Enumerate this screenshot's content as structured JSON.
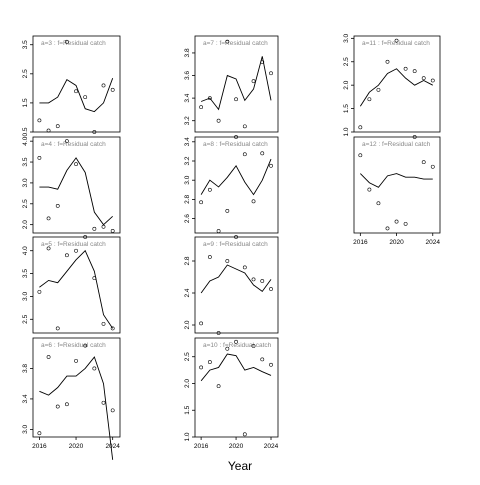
{
  "figure": {
    "xlabel": "Year"
  },
  "chart_data": [
    {
      "type": "line",
      "title": "a=3  :  f=Residual catch",
      "x": [
        2016,
        2017,
        2018,
        2019,
        2020,
        2021,
        2022,
        2023,
        2024
      ],
      "ylim": [
        0.5,
        3.8
      ],
      "yticks": [
        "0.5",
        "1.5",
        "2.5",
        "3.5"
      ],
      "ytick_values": [
        0.5,
        1.5,
        2.5,
        3.5
      ],
      "series": [
        {
          "values": [
            1.5,
            1.5,
            1.7,
            2.3,
            2.1,
            1.3,
            1.2,
            1.5,
            2.35
          ]
        }
      ],
      "observed": [
        {
          "x": 2016,
          "y": 0.9
        },
        {
          "x": 2017,
          "y": 0.55
        },
        {
          "x": 2018,
          "y": 0.7
        },
        {
          "x": 2019,
          "y": 3.6
        },
        {
          "x": 2020,
          "y": 1.9
        },
        {
          "x": 2021,
          "y": 1.7
        },
        {
          "x": 2022,
          "y": 0.5
        },
        {
          "x": 2023,
          "y": 2.1
        },
        {
          "x": 2024,
          "y": 1.95
        }
      ]
    },
    {
      "type": "line",
      "title": "a=4  :  f=Residual catch",
      "x": [
        2016,
        2017,
        2018,
        2019,
        2020,
        2021,
        2022,
        2023,
        2024
      ],
      "ylim": [
        1.8,
        4.1
      ],
      "yticks": [
        "2.0",
        "2.5",
        "3.0",
        "3.5",
        "4.0"
      ],
      "ytick_values": [
        2.0,
        2.5,
        3.0,
        3.5,
        4.0
      ],
      "series": [
        {
          "values": [
            2.9,
            2.9,
            2.85,
            3.3,
            3.6,
            3.25,
            2.3,
            2.0,
            2.2
          ]
        }
      ],
      "observed": [
        {
          "x": 2016,
          "y": 3.6
        },
        {
          "x": 2017,
          "y": 2.15
        },
        {
          "x": 2018,
          "y": 2.45
        },
        {
          "x": 2019,
          "y": 4.0
        },
        {
          "x": 2020,
          "y": 3.45
        },
        {
          "x": 2021,
          "y": 4.15
        },
        {
          "x": 2022,
          "y": 1.9
        },
        {
          "x": 2023,
          "y": 1.95
        },
        {
          "x": 2024,
          "y": 1.85
        }
      ]
    },
    {
      "type": "line",
      "title": "a=5  :  f=Residual catch",
      "x": [
        2016,
        2017,
        2018,
        2019,
        2020,
        2021,
        2022,
        2023,
        2024
      ],
      "ylim": [
        2.2,
        4.3
      ],
      "yticks": [
        "2.5",
        "3.0",
        "3.5",
        "4.0"
      ],
      "ytick_values": [
        2.5,
        3.0,
        3.5,
        4.0
      ],
      "series": [
        {
          "values": [
            3.2,
            3.35,
            3.3,
            3.55,
            3.8,
            4.0,
            3.55,
            2.6,
            2.3
          ]
        }
      ],
      "observed": [
        {
          "x": 2016,
          "y": 3.1
        },
        {
          "x": 2017,
          "y": 4.05
        },
        {
          "x": 2018,
          "y": 2.3
        },
        {
          "x": 2019,
          "y": 3.9
        },
        {
          "x": 2020,
          "y": 4.0
        },
        {
          "x": 2021,
          "y": 4.3
        },
        {
          "x": 2022,
          "y": 3.4
        },
        {
          "x": 2023,
          "y": 2.4
        },
        {
          "x": 2024,
          "y": 2.3
        }
      ]
    },
    {
      "type": "line",
      "title": "a=6  :  f=Residual catch",
      "x": [
        2016,
        2017,
        2018,
        2019,
        2020,
        2021,
        2022,
        2023,
        2024
      ],
      "ylim": [
        2.9,
        4.2
      ],
      "yticks": [
        "3.0",
        "3.4",
        "3.8"
      ],
      "ytick_values": [
        3.0,
        3.4,
        3.8
      ],
      "series": [
        {
          "values": [
            3.5,
            3.45,
            3.55,
            3.7,
            3.7,
            3.8,
            3.95,
            3.6,
            2.6
          ]
        }
      ],
      "observed": [
        {
          "x": 2016,
          "y": 2.95
        },
        {
          "x": 2017,
          "y": 3.95
        },
        {
          "x": 2018,
          "y": 3.3
        },
        {
          "x": 2019,
          "y": 3.33
        },
        {
          "x": 2020,
          "y": 3.9
        },
        {
          "x": 2021,
          "y": 4.1
        },
        {
          "x": 2022,
          "y": 3.8
        },
        {
          "x": 2023,
          "y": 3.35
        },
        {
          "x": 2024,
          "y": 3.25
        }
      ]
    },
    {
      "type": "line",
      "title": "a=7  :  f=Residual catch",
      "x": [
        2016,
        2017,
        2018,
        2019,
        2020,
        2021,
        2022,
        2023,
        2024
      ],
      "ylim": [
        3.1,
        3.95
      ],
      "yticks": [
        "3.2",
        "3.4",
        "3.6",
        "3.8"
      ],
      "ytick_values": [
        3.2,
        3.4,
        3.6,
        3.8
      ],
      "series": [
        {
          "values": [
            3.37,
            3.4,
            3.3,
            3.6,
            3.57,
            3.38,
            3.48,
            3.77,
            3.38
          ]
        }
      ],
      "observed": [
        {
          "x": 2016,
          "y": 3.32
        },
        {
          "x": 2017,
          "y": 3.4
        },
        {
          "x": 2018,
          "y": 3.2
        },
        {
          "x": 2019,
          "y": 3.9
        },
        {
          "x": 2020,
          "y": 3.39
        },
        {
          "x": 2021,
          "y": 3.15
        },
        {
          "x": 2022,
          "y": 3.55
        },
        {
          "x": 2023,
          "y": 3.72
        },
        {
          "x": 2024,
          "y": 3.62
        }
      ]
    },
    {
      "type": "line",
      "title": "a=8  :  f=Residual catch",
      "x": [
        2016,
        2017,
        2018,
        2019,
        2020,
        2021,
        2022,
        2023,
        2024
      ],
      "ylim": [
        2.45,
        3.45
      ],
      "yticks": [
        "2.6",
        "2.8",
        "3.0",
        "3.2",
        "3.4"
      ],
      "ytick_values": [
        2.6,
        2.8,
        3.0,
        3.2,
        3.4
      ],
      "series": [
        {
          "values": [
            2.85,
            3.0,
            2.93,
            3.03,
            3.15,
            2.98,
            2.85,
            3.0,
            3.22
          ]
        }
      ],
      "observed": [
        {
          "x": 2016,
          "y": 2.77
        },
        {
          "x": 2017,
          "y": 2.9
        },
        {
          "x": 2018,
          "y": 2.47
        },
        {
          "x": 2019,
          "y": 2.68
        },
        {
          "x": 2020,
          "y": 3.45
        },
        {
          "x": 2021,
          "y": 3.27
        },
        {
          "x": 2022,
          "y": 2.78
        },
        {
          "x": 2023,
          "y": 3.28
        },
        {
          "x": 2024,
          "y": 3.15
        }
      ]
    },
    {
      "type": "line",
      "title": "a=9  :  f=Residual catch",
      "x": [
        2016,
        2017,
        2018,
        2019,
        2020,
        2021,
        2022,
        2023,
        2024
      ],
      "ylim": [
        1.9,
        3.1
      ],
      "yticks": [
        "2.0",
        "2.4",
        "2.8"
      ],
      "ytick_values": [
        2.0,
        2.4,
        2.8
      ],
      "series": [
        {
          "values": [
            2.4,
            2.55,
            2.6,
            2.75,
            2.7,
            2.65,
            2.5,
            2.42,
            2.57
          ]
        }
      ],
      "observed": [
        {
          "x": 2016,
          "y": 2.02
        },
        {
          "x": 2017,
          "y": 2.85
        },
        {
          "x": 2018,
          "y": 1.9
        },
        {
          "x": 2019,
          "y": 2.8
        },
        {
          "x": 2020,
          "y": 3.1
        },
        {
          "x": 2021,
          "y": 2.72
        },
        {
          "x": 2022,
          "y": 2.57
        },
        {
          "x": 2023,
          "y": 2.55
        },
        {
          "x": 2024,
          "y": 2.45
        }
      ]
    },
    {
      "type": "line",
      "title": "a=10  :  f=Residual catch",
      "x": [
        2016,
        2017,
        2018,
        2019,
        2020,
        2021,
        2022,
        2023,
        2024
      ],
      "ylim": [
        1.0,
        2.85
      ],
      "yticks": [
        "1.0",
        "1.5",
        "2.0",
        "2.5"
      ],
      "ytick_values": [
        1.0,
        1.5,
        2.0,
        2.5
      ],
      "series": [
        {
          "values": [
            2.05,
            2.25,
            2.3,
            2.55,
            2.52,
            2.25,
            2.3,
            2.22,
            2.15
          ]
        }
      ],
      "observed": [
        {
          "x": 2016,
          "y": 2.3
        },
        {
          "x": 2017,
          "y": 2.4
        },
        {
          "x": 2018,
          "y": 1.95
        },
        {
          "x": 2019,
          "y": 2.65
        },
        {
          "x": 2020,
          "y": 2.78
        },
        {
          "x": 2021,
          "y": 1.05
        },
        {
          "x": 2022,
          "y": 2.7
        },
        {
          "x": 2023,
          "y": 2.45
        },
        {
          "x": 2024,
          "y": 2.35
        }
      ]
    },
    {
      "type": "line",
      "title": "a=11  :  f=Residual catch",
      "x": [
        2016,
        2017,
        2018,
        2019,
        2020,
        2021,
        2022,
        2023,
        2024
      ],
      "ylim": [
        1.0,
        3.05
      ],
      "yticks": [
        "1.0",
        "1.5",
        "2.0",
        "2.5",
        "3.0"
      ],
      "ytick_values": [
        1.0,
        1.5,
        2.0,
        2.5,
        3.0
      ],
      "series": [
        {
          "values": [
            1.55,
            1.85,
            2.0,
            2.25,
            2.35,
            2.15,
            2.0,
            2.1,
            2.0
          ]
        }
      ],
      "observed": [
        {
          "x": 2016,
          "y": 1.1
        },
        {
          "x": 2017,
          "y": 1.7
        },
        {
          "x": 2018,
          "y": 1.9
        },
        {
          "x": 2019,
          "y": 2.5
        },
        {
          "x": 2020,
          "y": 2.95
        },
        {
          "x": 2021,
          "y": 2.35
        },
        {
          "x": 2022,
          "y": 2.3
        },
        {
          "x": 2023,
          "y": 2.15
        },
        {
          "x": 2024,
          "y": 2.1
        }
      ]
    },
    {
      "type": "line",
      "title": "a=12  :  f=Residual catch",
      "x": [
        2016,
        2017,
        2018,
        2019,
        2020,
        2021,
        2022,
        2023,
        2024
      ],
      "xticks": [
        "2016",
        "2020",
        "2024"
      ],
      "xtick_values": [
        2016,
        2020,
        2024
      ],
      "ylim": [
        1.1,
        3.2
      ],
      "yticks": [],
      "ytick_values": [],
      "series": [
        {
          "values": [
            2.4,
            2.2,
            2.1,
            2.35,
            2.4,
            2.32,
            2.32,
            2.28,
            2.28
          ]
        }
      ],
      "observed": [
        {
          "x": 2016,
          "y": 2.8
        },
        {
          "x": 2017,
          "y": 2.05
        },
        {
          "x": 2018,
          "y": 1.75
        },
        {
          "x": 2019,
          "y": 1.2
        },
        {
          "x": 2020,
          "y": 1.35
        },
        {
          "x": 2021,
          "y": 1.3
        },
        {
          "x": 2022,
          "y": 3.2
        },
        {
          "x": 2023,
          "y": 2.65
        },
        {
          "x": 2024,
          "y": 2.55
        }
      ]
    }
  ],
  "bottom_xticks": [
    "2016",
    "2020",
    "2024"
  ],
  "bottom_xtick_values": [
    2016,
    2020,
    2024
  ]
}
